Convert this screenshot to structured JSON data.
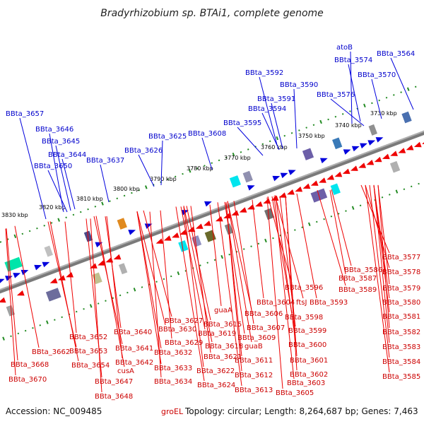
{
  "title": "Bradyrhizobium sp. BTAi1, complete genome",
  "footer": {
    "accession": "Accession: NC_009485",
    "topology": "Topology: circular; Length: 8,264,687 bp; Genes: 7,463",
    "groel": "groEL"
  },
  "colors": {
    "forward": "#0000dd",
    "reverse": "#ee0000",
    "tick": "#228b22",
    "backbone": "#808080"
  },
  "scale_labels": [
    "3730 kbp",
    "3740 kbp",
    "3750 kbp",
    "3760 kbp",
    "3770 kbp",
    "3780 kbp",
    "3790 kbp",
    "3800 kbp",
    "3810 kbp",
    "3820 kbp",
    "3830 kbp"
  ],
  "top_labels": [
    "BBta_3564",
    "atoB",
    "BBta_3574",
    "BBta_3570",
    "BBta_3592",
    "BBta_3590",
    "BBta_3576",
    "BBta_3591",
    "BBta_3594",
    "BBta_3595",
    "BBta_3657",
    "BBta_3608",
    "BBta_3646",
    "BBta_3625",
    "BBta_3645",
    "BBta_3626",
    "BBta_3644",
    "BBta_3637",
    "BBta_3650"
  ],
  "bottom_labels": [
    "BBta_3577",
    "BBta_3578",
    "BBta_3586",
    "BBta_3587",
    "BBta_3579",
    "BBta_3589",
    "BBta_3596",
    "BBta_3593",
    "BBta_3580",
    "BBta_3604",
    "ftsJ",
    "BBta_3606",
    "BBta_3598",
    "BBta_3581",
    "guaA",
    "BBta_3627",
    "BBta_3615",
    "BBta_3607",
    "BBta_3599",
    "BBta_3582",
    "BBta_3630",
    "BBta_3619",
    "BBta_3609",
    "BBta_3640",
    "BBta_3629",
    "BBta_3618",
    "guaB",
    "BBta_3600",
    "BBta_3583",
    "BBta_3652",
    "BBta_3641",
    "BBta_3632",
    "BBta_3621",
    "BBta_3611",
    "BBta_3601",
    "BBta_3653",
    "BBta_3662",
    "BBta_3584",
    "BBta_3642",
    "BBta_3668",
    "BBta_3654",
    "BBta_3633",
    "BBta_3622",
    "BBta_3612",
    "BBta_3602",
    "cusA",
    "BBta_3585",
    "BBta_3670",
    "BBta_3647",
    "BBta_3634",
    "BBta_3624",
    "BBta_3613",
    "BBta_3603",
    "BBta_3605",
    "BBta_3648"
  ]
}
